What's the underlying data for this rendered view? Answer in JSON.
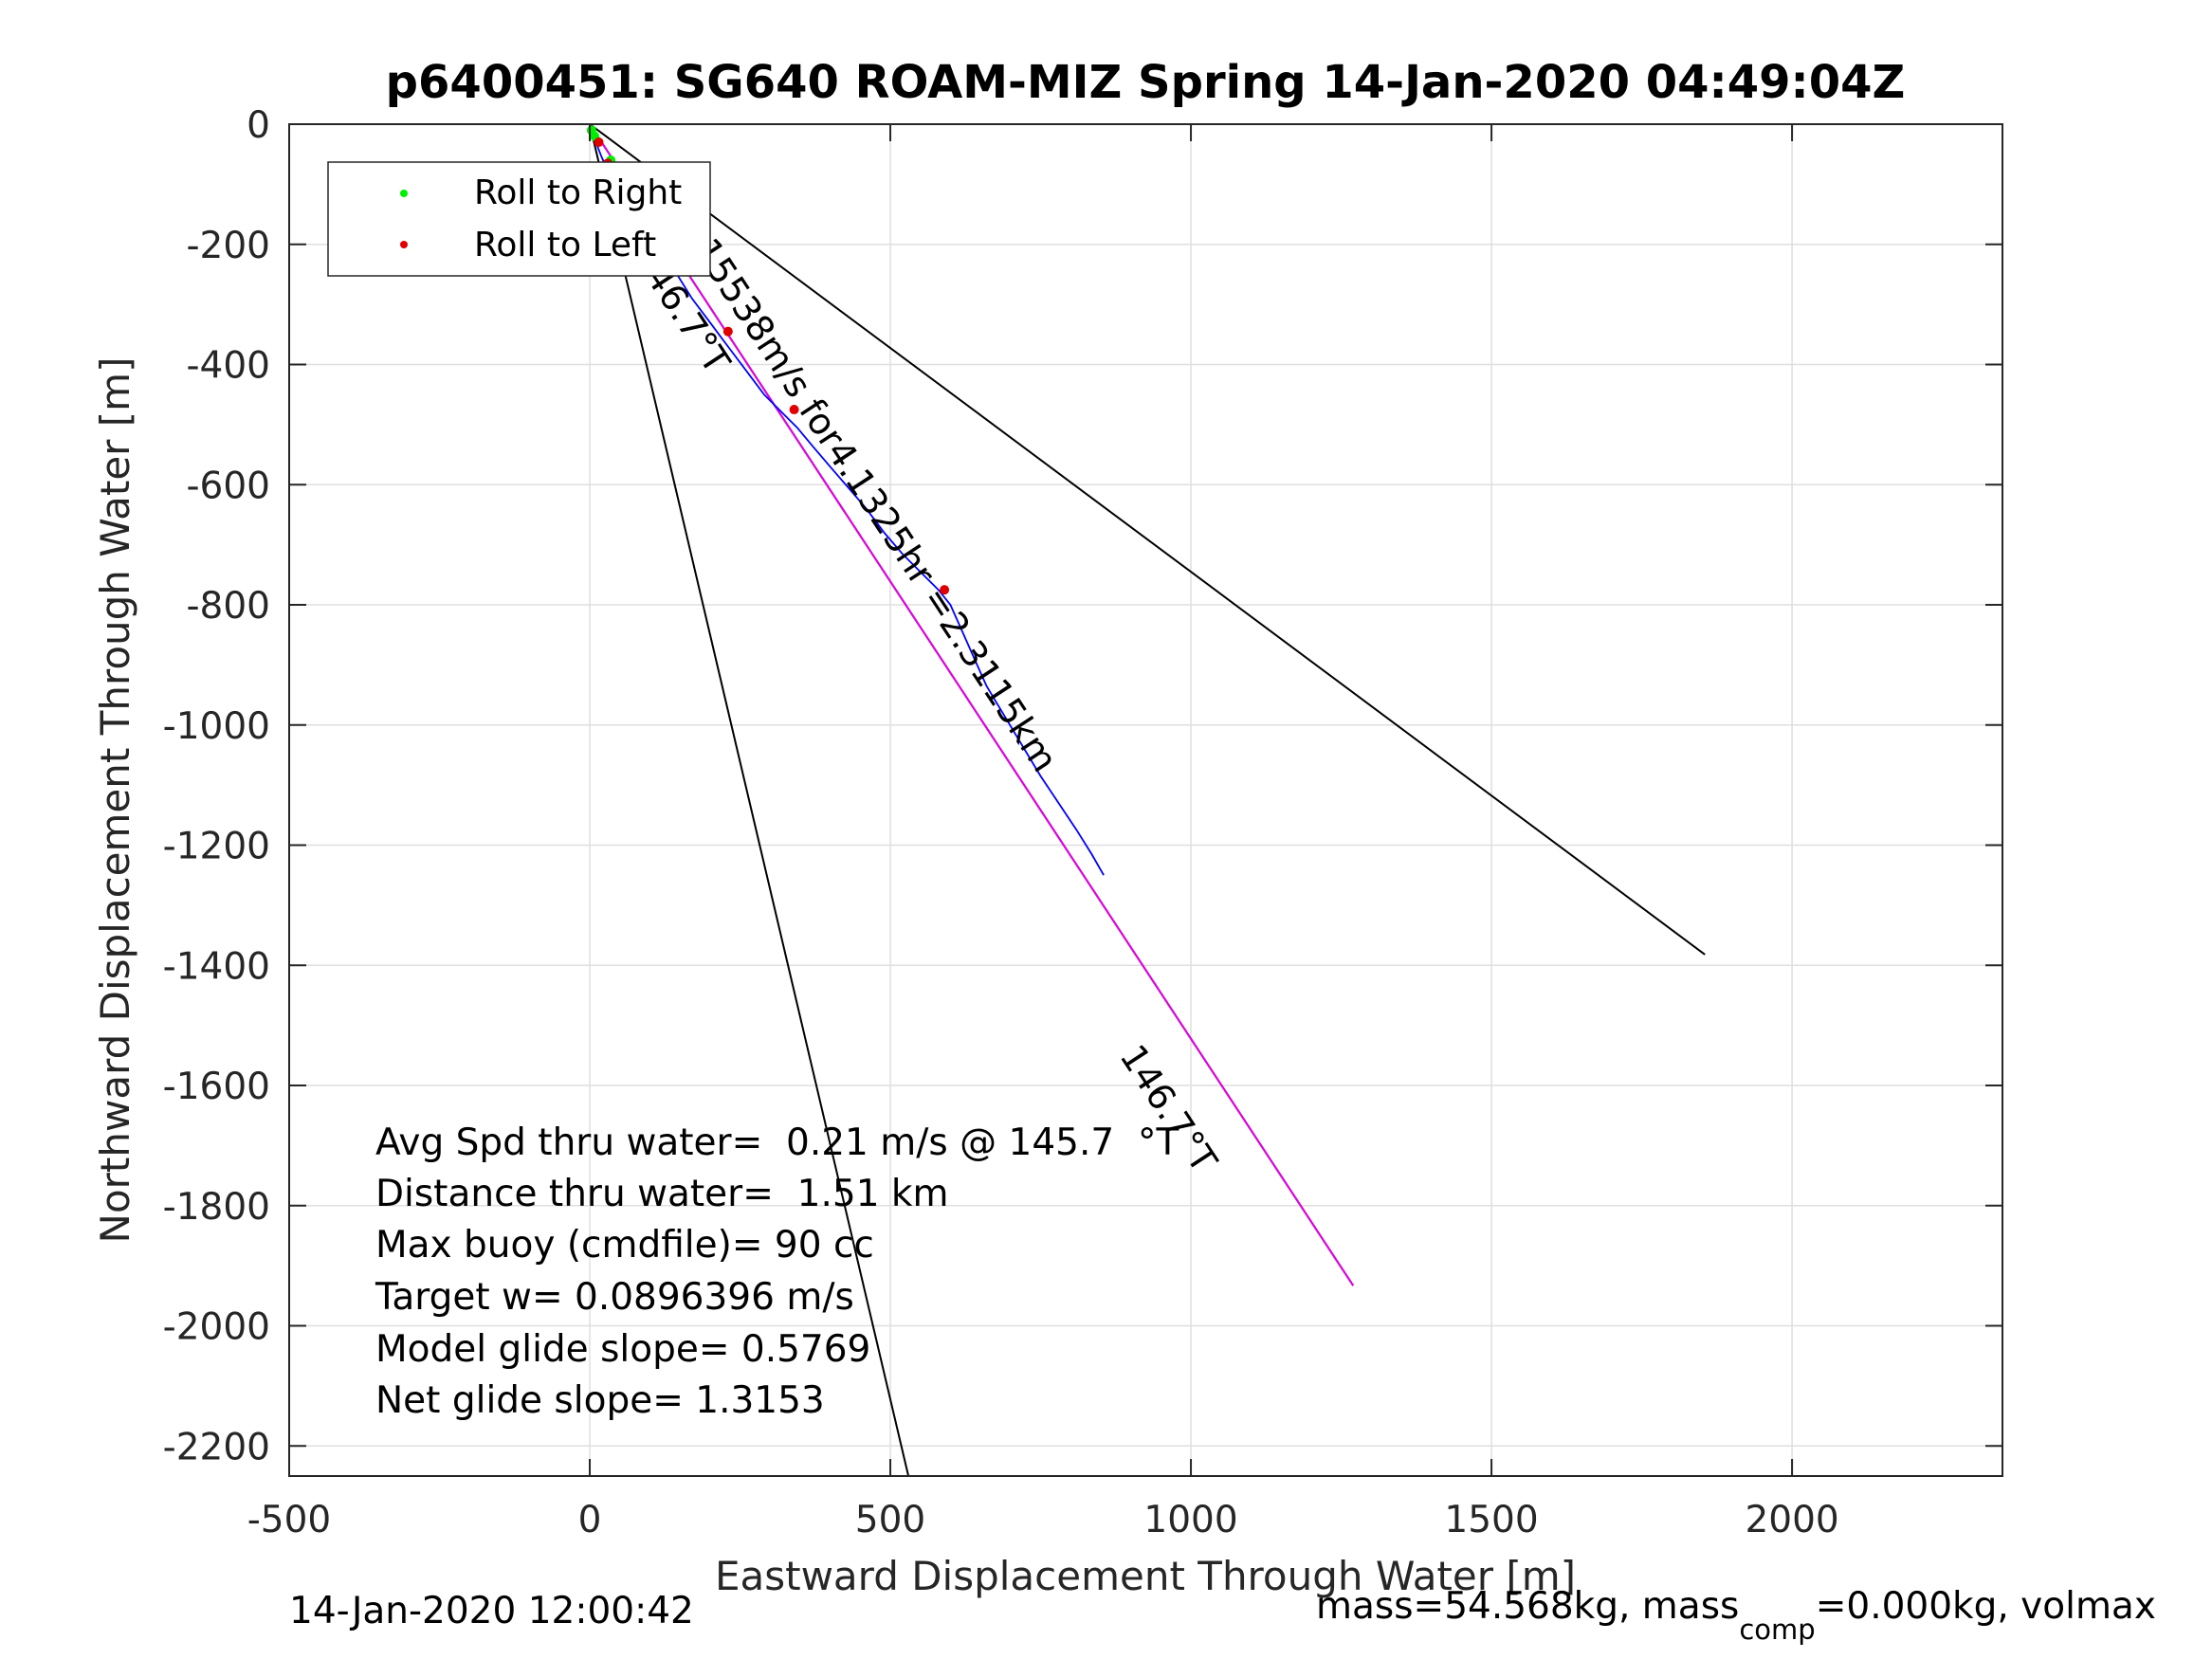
{
  "chart_data": {
    "type": "line",
    "title": "p6400451: SG640 ROAM-MIZ Spring 14-Jan-2020 04:49:04Z",
    "xlabel": "Eastward Displacement Through Water [m]",
    "ylabel": "Northward Displacement Through Water [m]",
    "xlim": [
      -500,
      2350
    ],
    "ylim": [
      -2250,
      0
    ],
    "xticks": [
      -500,
      0,
      500,
      1000,
      1500,
      2000
    ],
    "yticks": [
      0,
      -200,
      -400,
      -600,
      -800,
      -1000,
      -1200,
      -1400,
      -1600,
      -1800,
      -2000,
      -2200
    ],
    "grid": true,
    "legend": {
      "placement": "top-left",
      "entries": [
        {
          "label": "Roll to Right",
          "color": "#00ee00"
        },
        {
          "label": "Roll to Left",
          "color": "#e00000"
        }
      ]
    },
    "series": [
      {
        "style": "black",
        "x": [
          0,
          1855
        ],
        "y": [
          0,
          -1382
        ]
      },
      {
        "style": "black",
        "x": [
          0,
          530
        ],
        "y": [
          0,
          -2250
        ]
      },
      {
        "style": "black",
        "x": [
          0,
          1270
        ],
        "y": [
          0,
          -1933
        ]
      },
      {
        "style": "magenta",
        "x": [
          0,
          1270
        ],
        "y": [
          0,
          -1933
        ]
      },
      {
        "style": "blue",
        "x": [
          0,
          8,
          20,
          35,
          55,
          80,
          95,
          110,
          125,
          145,
          170,
          200,
          230,
          260,
          290,
          320,
          345,
          370,
          400,
          430,
          460,
          490,
          520,
          550,
          580,
          600,
          620,
          640,
          660,
          690,
          720,
          750,
          780,
          810,
          835,
          855
        ],
        "y": [
          0,
          -25,
          -55,
          -90,
          -125,
          -160,
          -185,
          -200,
          -220,
          -250,
          -290,
          -330,
          -370,
          -410,
          -450,
          -480,
          -505,
          -535,
          -570,
          -605,
          -640,
          -680,
          -715,
          -745,
          -775,
          -800,
          -845,
          -890,
          -935,
          -985,
          -1035,
          -1085,
          -1130,
          -1175,
          -1215,
          -1250
        ]
      }
    ],
    "roll_right_points": {
      "x": [
        3,
        8,
        35,
        95
      ],
      "y": [
        -10,
        -20,
        -60,
        -180
      ]
    },
    "roll_left_points": {
      "x": [
        15,
        30,
        120,
        230,
        340,
        590
      ],
      "y": [
        -30,
        -65,
        -195,
        -345,
        -475,
        -775
      ]
    },
    "annotations": [
      {
        "text": "0.15538m/s for4.1325hr =2.3115km",
        "x": 140,
        "y": -160,
        "angle": 56.7
      },
      {
        "text": "146.7°T",
        "x": 70,
        "y": -220,
        "angle": 56.7
      },
      {
        "text": "146.7°T",
        "x": 880,
        "y": -1550,
        "angle": 56.7
      }
    ],
    "info_lines": [
      "Avg Spd thru water=  0.21 m/s @ 145.7  °T",
      "Distance thru water=  1.51 km",
      "Max buoy (cmdfile)= 90 cc",
      "Target w= 0.0896396 m/s",
      "Model glide slope= 0.5769",
      "Net glide slope= 1.3153"
    ],
    "footer_left": "14-Jan-2020 12:00:42",
    "footer_right": {
      "text1": "mass=54.568kg, mass",
      "sub": "comp",
      "text2": "=0.000kg, volmax"
    }
  }
}
